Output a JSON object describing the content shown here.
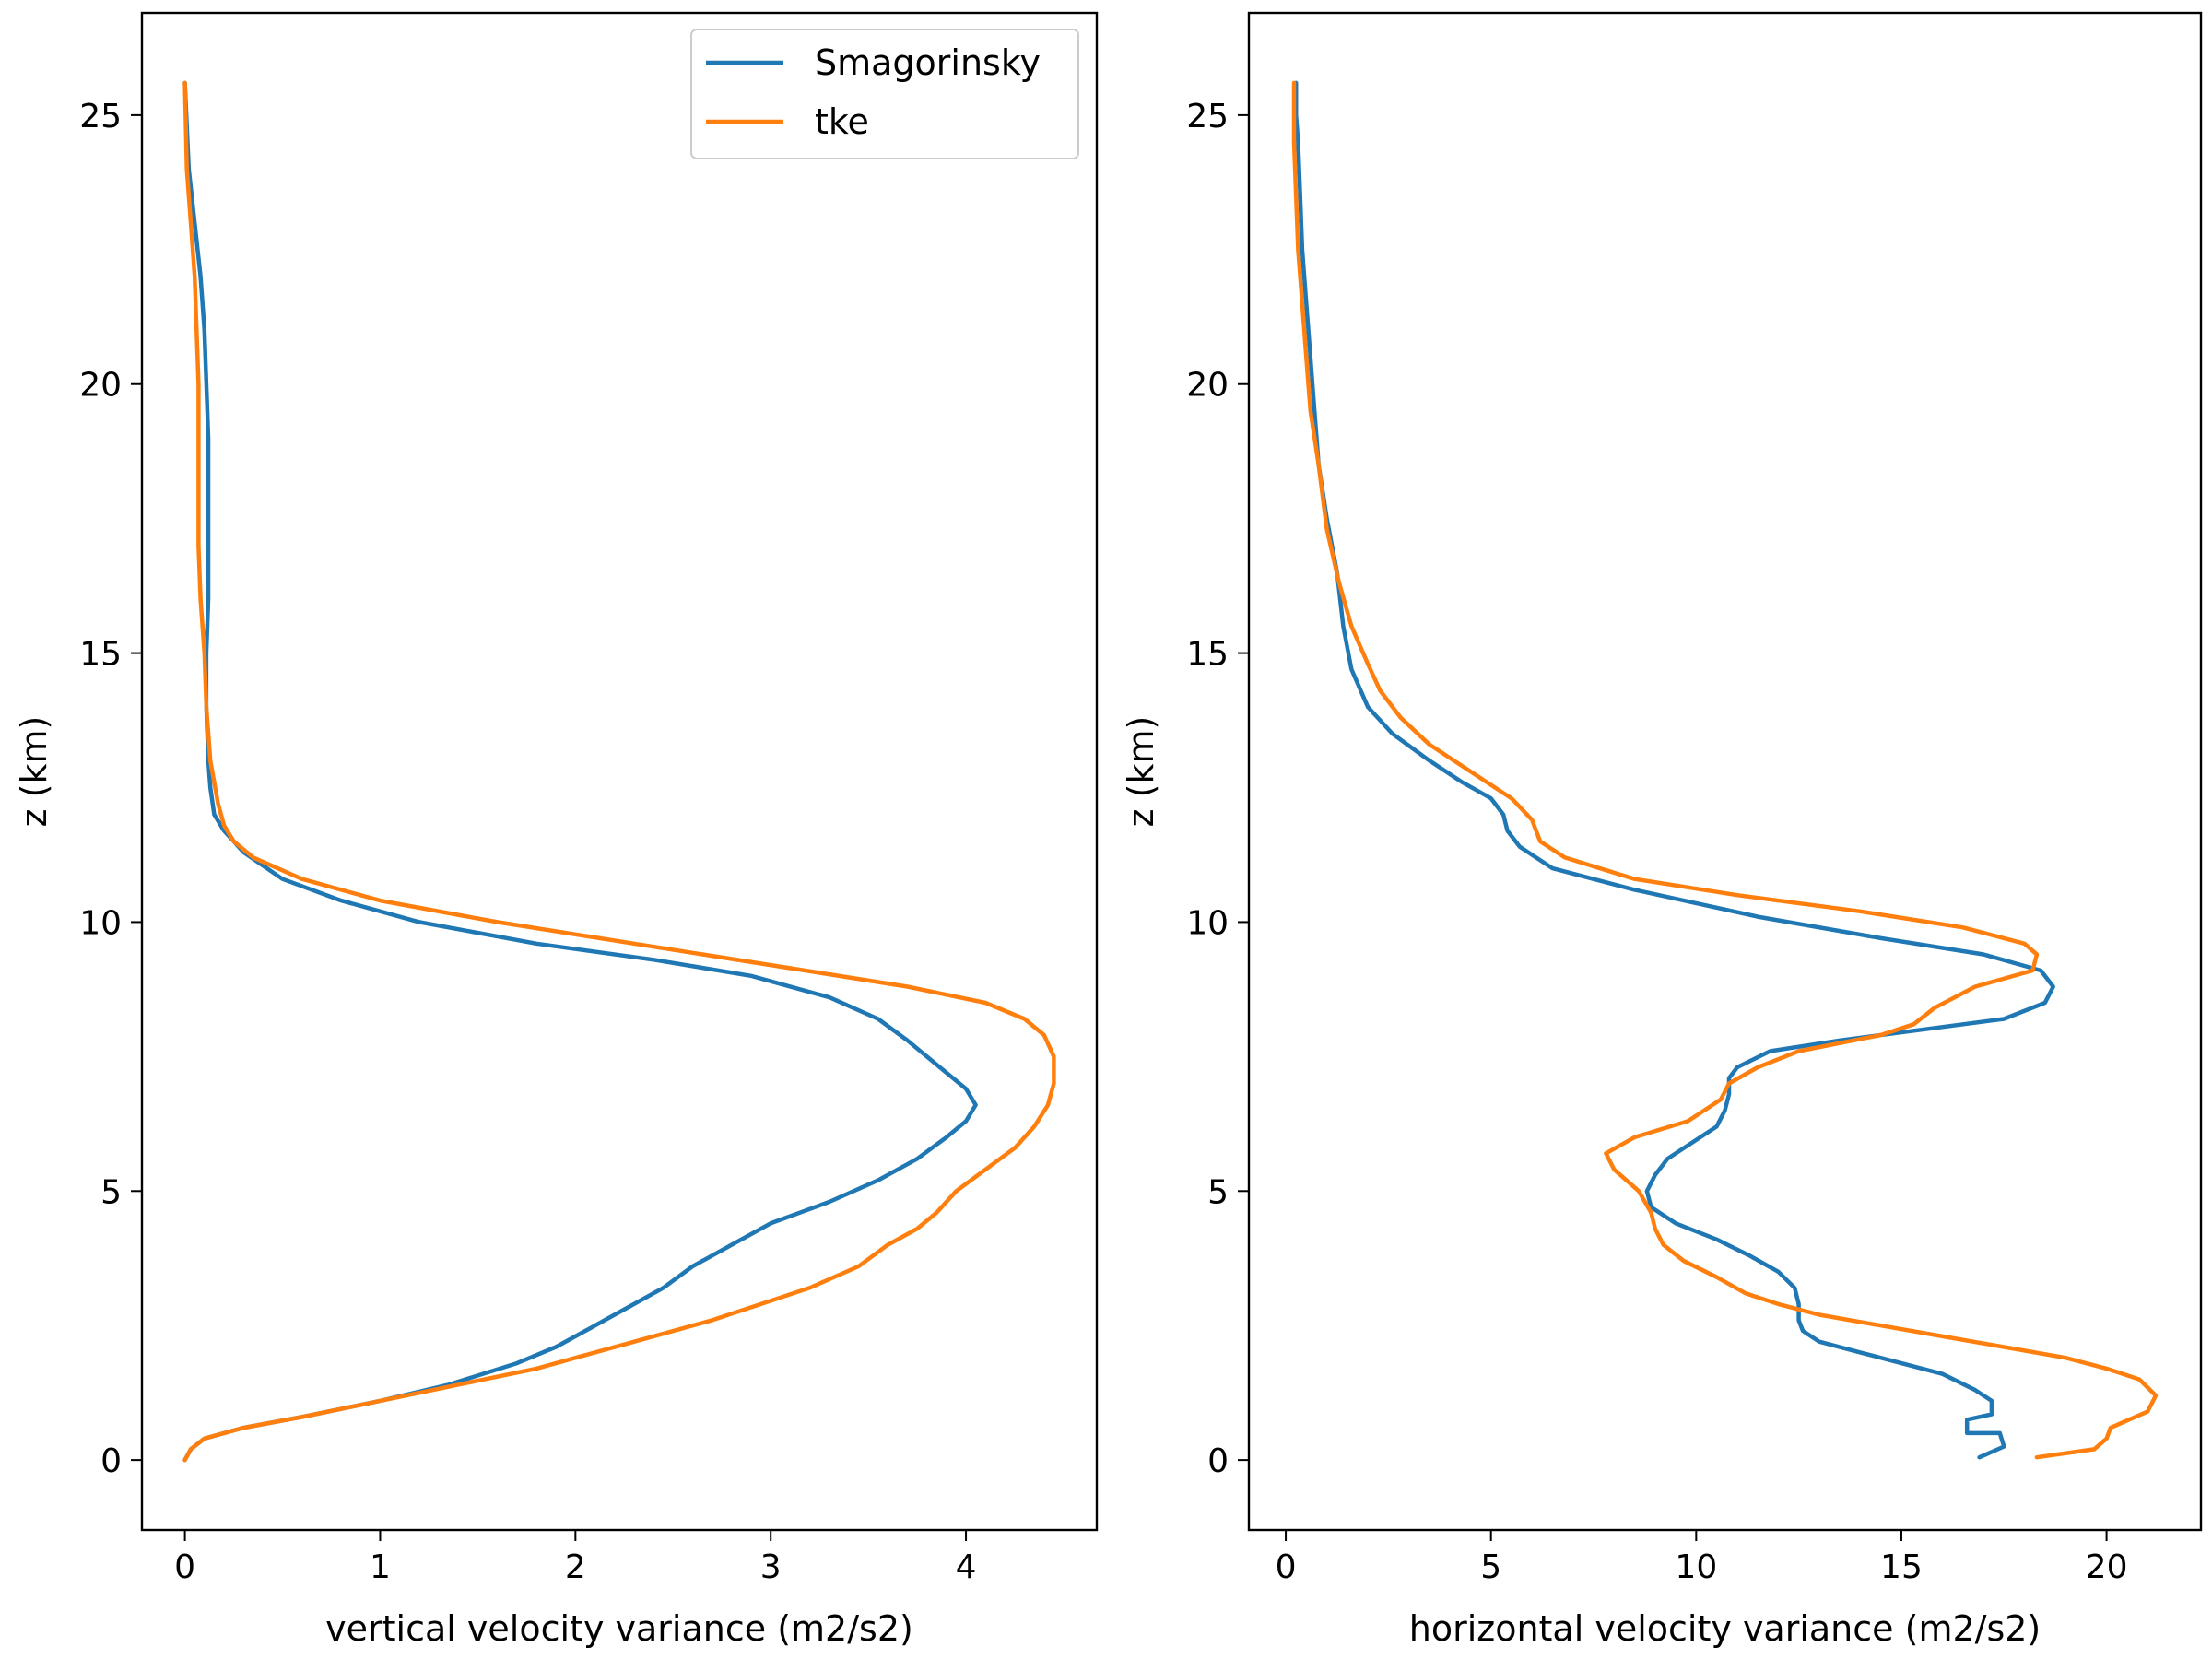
{
  "colors": {
    "Smagorinsky": "#1f77b4",
    "tke": "#ff7f0e",
    "axes": "#000000",
    "background": "#ffffff"
  },
  "legend": {
    "placement": "top-right",
    "entries": [
      "Smagorinsky",
      "tke"
    ]
  },
  "chart_data": [
    {
      "type": "line",
      "xlabel": "vertical velocity variance (m2/s2)",
      "ylabel": "z (km)",
      "xlim": [
        -0.22,
        4.67
      ],
      "ylim": [
        -1.3,
        26.9
      ],
      "xticks": [
        0,
        1,
        2,
        3,
        4
      ],
      "yticks": [
        0,
        5,
        10,
        15,
        20,
        25
      ],
      "grid": false,
      "legend": "top-right",
      "series": [
        {
          "name": "Smagorinsky",
          "x": [
            0.0,
            0.03,
            0.1,
            0.3,
            0.6,
            1.0,
            1.35,
            1.7,
            1.9,
            2.0,
            2.15,
            2.3,
            2.45,
            2.6,
            2.8,
            3.0,
            3.3,
            3.55,
            3.75,
            3.9,
            4.0,
            4.05,
            4.0,
            3.9,
            3.8,
            3.7,
            3.55,
            3.3,
            2.9,
            2.4,
            1.8,
            1.2,
            0.8,
            0.5,
            0.3,
            0.2,
            0.15,
            0.13,
            0.12,
            0.11,
            0.11,
            0.12,
            0.12,
            0.12,
            0.12,
            0.11,
            0.1,
            0.08,
            0.05,
            0.02,
            0.0
          ],
          "y": [
            0.0,
            0.2,
            0.4,
            0.6,
            0.8,
            1.1,
            1.4,
            1.8,
            2.1,
            2.3,
            2.6,
            2.9,
            3.2,
            3.6,
            4.0,
            4.4,
            4.8,
            5.2,
            5.6,
            6.0,
            6.3,
            6.6,
            6.9,
            7.2,
            7.5,
            7.8,
            8.2,
            8.6,
            9.0,
            9.3,
            9.6,
            10.0,
            10.4,
            10.8,
            11.3,
            11.7,
            12.0,
            12.5,
            13.0,
            14.0,
            15.0,
            16.0,
            17.0,
            18.0,
            19.0,
            20.0,
            21.0,
            22.0,
            23.0,
            24.0,
            25.6
          ]
        },
        {
          "name": "tke",
          "x": [
            0.0,
            0.03,
            0.1,
            0.3,
            0.6,
            1.0,
            1.4,
            1.8,
            2.1,
            2.4,
            2.7,
            2.95,
            3.2,
            3.45,
            3.6,
            3.75,
            3.85,
            3.95,
            4.1,
            4.25,
            4.35,
            4.42,
            4.45,
            4.45,
            4.4,
            4.3,
            4.1,
            3.7,
            3.0,
            2.3,
            1.6,
            1.0,
            0.6,
            0.35,
            0.25,
            0.2,
            0.17,
            0.15,
            0.13,
            0.11,
            0.1,
            0.08,
            0.07,
            0.07,
            0.07,
            0.07,
            0.06,
            0.05,
            0.03,
            0.01,
            0.0
          ],
          "y": [
            0.0,
            0.2,
            0.4,
            0.6,
            0.8,
            1.1,
            1.4,
            1.7,
            2.0,
            2.3,
            2.6,
            2.9,
            3.2,
            3.6,
            4.0,
            4.3,
            4.6,
            5.0,
            5.4,
            5.8,
            6.2,
            6.6,
            7.0,
            7.5,
            7.9,
            8.2,
            8.5,
            8.8,
            9.2,
            9.6,
            10.0,
            10.4,
            10.8,
            11.2,
            11.5,
            11.8,
            12.2,
            12.6,
            13.0,
            14.0,
            15.0,
            16.0,
            17.0,
            18.0,
            19.0,
            20.0,
            21.0,
            22.0,
            23.0,
            24.0,
            25.6
          ]
        }
      ]
    },
    {
      "type": "line",
      "xlabel": "horizontal velocity variance (m2/s2)",
      "ylabel": "z (km)",
      "xlim": [
        -0.9,
        22.3
      ],
      "ylim": [
        -1.3,
        26.9
      ],
      "xticks": [
        0,
        5,
        10,
        15,
        20
      ],
      "yticks": [
        0,
        5,
        10,
        15,
        20,
        25
      ],
      "grid": false,
      "legend": "none",
      "series": [
        {
          "name": "Smagorinsky",
          "x": [
            16.9,
            17.5,
            17.4,
            16.6,
            16.6,
            17.2,
            17.2,
            16.8,
            16.0,
            15.0,
            14.0,
            13.0,
            12.6,
            12.5,
            12.5,
            12.4,
            12.0,
            11.3,
            10.5,
            9.5,
            8.9,
            8.8,
            9.0,
            9.3,
            9.9,
            10.5,
            10.7,
            10.8,
            10.8,
            11.0,
            11.8,
            13.5,
            15.5,
            17.5,
            18.5,
            18.7,
            18.4,
            17.0,
            14.5,
            11.5,
            8.5,
            6.5,
            5.7,
            5.4,
            5.3,
            5.0,
            4.3,
            3.5,
            2.6,
            2.0,
            1.6,
            1.4,
            1.25,
            1.0,
            0.8,
            0.7,
            0.6,
            0.5,
            0.4,
            0.35,
            0.3,
            0.25,
            0.25
          ],
          "y": [
            0.05,
            0.25,
            0.5,
            0.5,
            0.75,
            0.85,
            1.1,
            1.3,
            1.6,
            1.8,
            2.0,
            2.2,
            2.4,
            2.6,
            2.9,
            3.2,
            3.5,
            3.8,
            4.1,
            4.4,
            4.7,
            5.0,
            5.3,
            5.6,
            5.9,
            6.2,
            6.5,
            6.8,
            7.1,
            7.3,
            7.6,
            7.8,
            8.0,
            8.2,
            8.5,
            8.8,
            9.1,
            9.4,
            9.7,
            10.1,
            10.6,
            11.0,
            11.4,
            11.7,
            12.0,
            12.3,
            12.6,
            13.0,
            13.5,
            14.0,
            14.7,
            15.5,
            16.5,
            17.5,
            18.5,
            19.5,
            20.5,
            21.5,
            22.5,
            23.5,
            24.5,
            25.0,
            25.6
          ]
        },
        {
          "name": "tke",
          "x": [
            18.3,
            19.7,
            20.0,
            20.1,
            21.0,
            21.2,
            20.8,
            20.0,
            19.0,
            17.5,
            16.0,
            14.5,
            13.0,
            12.0,
            11.2,
            10.5,
            9.7,
            9.2,
            9.0,
            8.9,
            8.6,
            8.0,
            7.8,
            8.5,
            9.8,
            10.6,
            10.8,
            11.5,
            12.5,
            14.5,
            15.3,
            15.8,
            16.8,
            18.2,
            18.3,
            18.0,
            16.5,
            14.0,
            11.0,
            8.5,
            6.8,
            6.2,
            6.0,
            5.5,
            4.5,
            3.5,
            2.8,
            2.3,
            2.0,
            1.6,
            1.3,
            1.0,
            0.8,
            0.6,
            0.5,
            0.4,
            0.3,
            0.25,
            0.2,
            0.2
          ],
          "y": [
            0.05,
            0.2,
            0.4,
            0.6,
            0.9,
            1.2,
            1.5,
            1.7,
            1.9,
            2.1,
            2.3,
            2.5,
            2.7,
            2.9,
            3.1,
            3.4,
            3.7,
            4.0,
            4.3,
            4.6,
            5.0,
            5.4,
            5.7,
            6.0,
            6.3,
            6.7,
            7.0,
            7.3,
            7.6,
            7.9,
            8.1,
            8.4,
            8.8,
            9.1,
            9.4,
            9.6,
            9.9,
            10.2,
            10.5,
            10.8,
            11.2,
            11.5,
            11.9,
            12.3,
            12.8,
            13.3,
            13.8,
            14.3,
            14.8,
            15.5,
            16.3,
            17.3,
            18.5,
            19.5,
            20.5,
            21.5,
            22.5,
            23.5,
            24.5,
            25.6
          ]
        }
      ]
    }
  ]
}
